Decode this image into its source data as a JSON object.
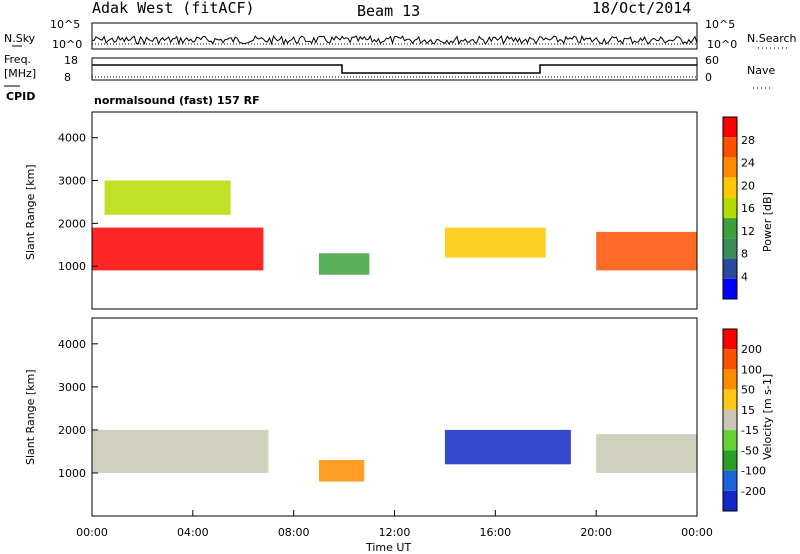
{
  "header": {
    "radar": "Adak West (fitACF)",
    "beam": "Beam 13",
    "date": "18/Oct/2014"
  },
  "status_panel": {
    "left_top": "N.Sky",
    "right_top": "N.Search",
    "ticks_top": [
      "10^5",
      "10^0"
    ],
    "left_mid": "Freq.",
    "left_mid_unit": "[MHz]",
    "freq_ticks": [
      "18",
      "8"
    ],
    "right_mid": "Nave",
    "nave_ticks": [
      "60",
      "0"
    ],
    "cpid_label": "CPID",
    "cpid_value": "normalsound (fast) 157 RF"
  },
  "colors": {
    "power": [
      "#0000ff",
      "#2a4aa0",
      "#3c8c5a",
      "#3ca03c",
      "#b4dc00",
      "#ffc800",
      "#ff8c00",
      "#ff5000",
      "#ff0000"
    ],
    "velocity": [
      "#1428c8",
      "#1e64dc",
      "#28a028",
      "#64d232",
      "#c8c8b4",
      "#ffc814",
      "#ff8c00",
      "#ff5000",
      "#ff0000"
    ]
  },
  "chart_data": [
    {
      "type": "heatmap",
      "panel": "power",
      "ylabel": "Slant Range [km]",
      "xlabel": "",
      "ylim": [
        0,
        4600
      ],
      "xlim_hours": [
        0,
        24
      ],
      "yticks": [
        1000,
        2000,
        3000,
        4000
      ],
      "colorbar_label": "Power [dB]",
      "colorbar_ticks": [
        "28",
        "24",
        "20",
        "16",
        "12",
        "8",
        "4"
      ],
      "bands": [
        {
          "t0": 0.0,
          "t1": 6.8,
          "r0": 900,
          "r1": 1900,
          "level": 8
        },
        {
          "t0": 0.5,
          "t1": 5.5,
          "r0": 2200,
          "r1": 3000,
          "level": 4
        },
        {
          "t0": 9.0,
          "t1": 11.0,
          "r0": 800,
          "r1": 1300,
          "level": 3
        },
        {
          "t0": 14.0,
          "t1": 18.0,
          "r0": 1200,
          "r1": 1900,
          "level": 5
        },
        {
          "t0": 20.0,
          "t1": 24.0,
          "r0": 900,
          "r1": 1800,
          "level": 7
        }
      ]
    },
    {
      "type": "heatmap",
      "panel": "velocity",
      "ylabel": "Slant Range [km]",
      "xlabel": "Time UT",
      "ylim": [
        0,
        4600
      ],
      "xlim_hours": [
        0,
        24
      ],
      "yticks": [
        1000,
        2000,
        3000,
        4000
      ],
      "xticks": [
        "00:00",
        "04:00",
        "08:00",
        "12:00",
        "16:00",
        "20:00",
        "00:00"
      ],
      "colorbar_label": "Velocity [m s-1]",
      "colorbar_ticks": [
        "200",
        "100",
        "50",
        "15",
        "-15",
        "-50",
        "-100",
        "-200"
      ],
      "bands": [
        {
          "t0": 0.0,
          "t1": 7.0,
          "r0": 1000,
          "r1": 2000,
          "level": 4
        },
        {
          "t0": 9.0,
          "t1": 10.8,
          "r0": 800,
          "r1": 1300,
          "level": 6
        },
        {
          "t0": 14.0,
          "t1": 19.0,
          "r0": 1200,
          "r1": 2000,
          "level": 0
        },
        {
          "t0": 20.0,
          "t1": 24.0,
          "r0": 1000,
          "r1": 1900,
          "level": 4
        }
      ]
    }
  ]
}
